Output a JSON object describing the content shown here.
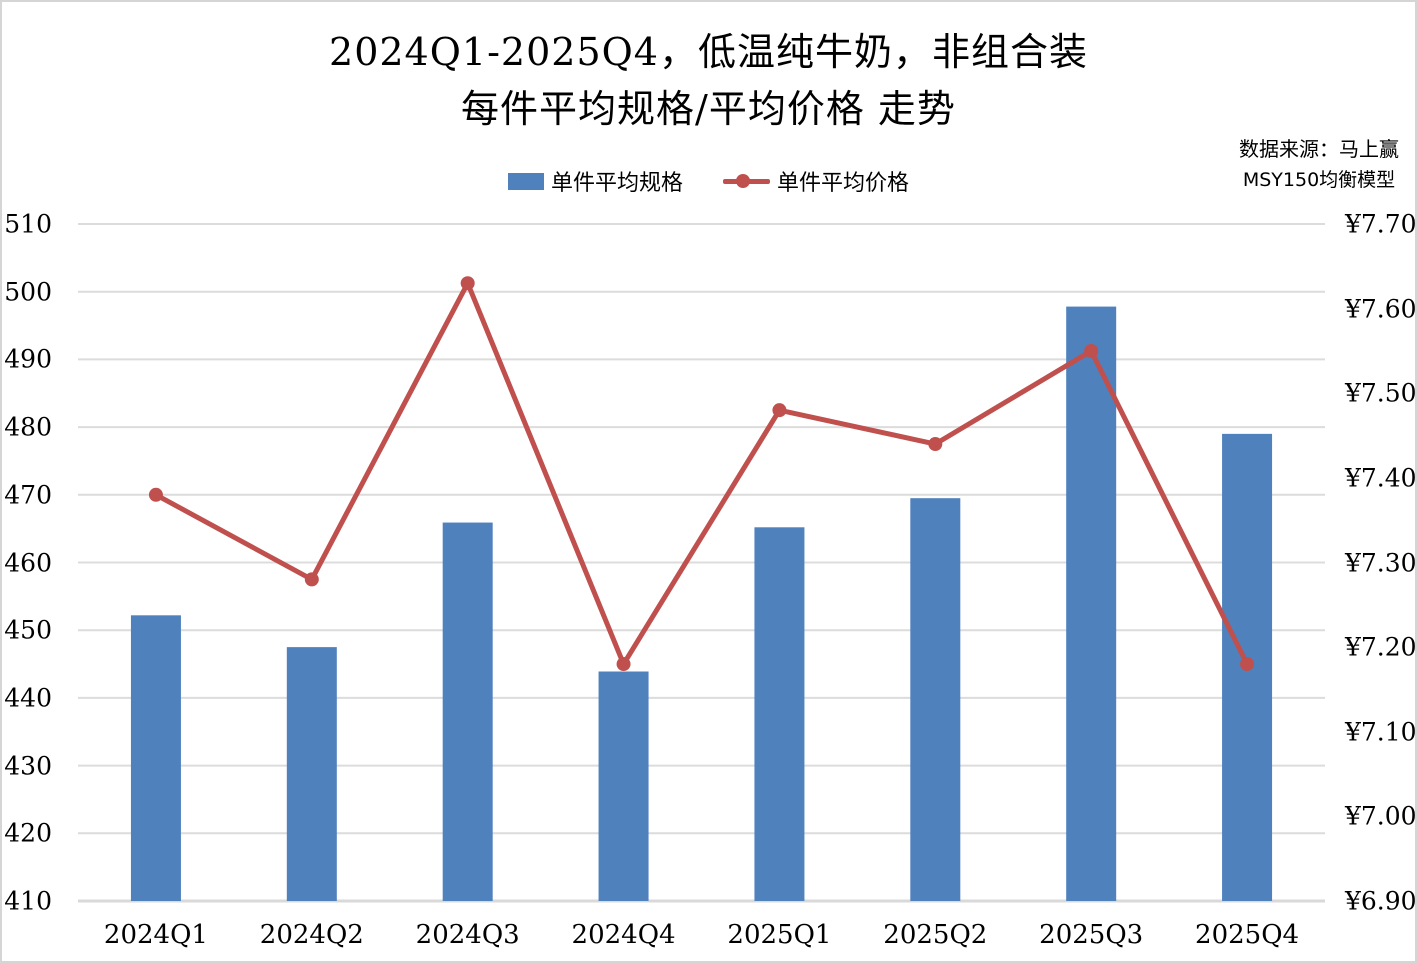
{
  "title": {
    "line1": "2024Q1-2025Q4，低温纯牛奶，非组合装",
    "line2": "每件平均规格/平均价格 走势"
  },
  "source": {
    "line1": "数据来源：马上赢",
    "line2": "MSY150均衡模型"
  },
  "legend": {
    "bar_label": "单件平均规格",
    "line_label": "单件平均价格"
  },
  "colors": {
    "bar": "#4F81BD",
    "line": "#C0504D",
    "gridline": "#DCDCDC",
    "axis_line": "#D9D9D9",
    "border": "#D5D5D5",
    "text": "#000000",
    "background": "#FFFFFF"
  },
  "chart_data": {
    "type": "bar",
    "combo": "bar+line, dual y-axis",
    "title": "2024Q1-2025Q4，低温纯牛奶，非组合装 每件平均规格/平均价格 走势",
    "categories": [
      "2024Q1",
      "2024Q2",
      "2024Q3",
      "2024Q4",
      "2025Q1",
      "2025Q2",
      "2025Q3",
      "2025Q4"
    ],
    "series": [
      {
        "name": "单件平均规格",
        "chart": "bar",
        "axis": "left",
        "color": "#4F81BD",
        "values": [
          452.2,
          447.5,
          465.9,
          443.9,
          465.2,
          469.5,
          497.8,
          479.0
        ]
      },
      {
        "name": "单件平均价格",
        "chart": "line",
        "axis": "right",
        "color": "#C0504D",
        "values": [
          7.38,
          7.28,
          7.63,
          7.18,
          7.48,
          7.44,
          7.55,
          7.18
        ]
      }
    ],
    "left_axis": {
      "min": 410,
      "max": 510,
      "step": 10,
      "tick_labels": [
        "510",
        "500",
        "490",
        "480",
        "470",
        "460",
        "450",
        "440",
        "430",
        "420",
        "410"
      ]
    },
    "right_axis": {
      "min": 6.9,
      "max": 7.7,
      "step": 0.1,
      "tick_labels": [
        "¥7.70",
        "¥7.60",
        "¥7.50",
        "¥7.40",
        "¥7.30",
        "¥7.20",
        "¥7.10",
        "¥7.00",
        "¥6.90"
      ]
    },
    "grid": "horizontal gridlines on",
    "legend_position": "top-center"
  }
}
